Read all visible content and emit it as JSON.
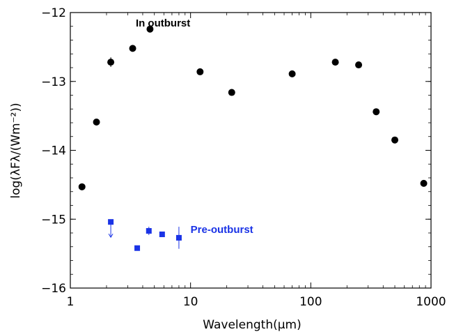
{
  "chart_data": {
    "type": "scatter",
    "title": "",
    "xlabel": "Wavelength(μm)",
    "ylabel": "log(λFλ/(Wm⁻²))",
    "xscale": "log",
    "xlim": [
      1,
      1000
    ],
    "ylim": [
      -16,
      -12
    ],
    "xticks": [
      {
        "value": 1,
        "label": "1"
      },
      {
        "value": 10,
        "label": "10"
      },
      {
        "value": 100,
        "label": "100"
      },
      {
        "value": 1000,
        "label": "1000"
      }
    ],
    "yticks": [
      {
        "value": -12,
        "label": "−12"
      },
      {
        "value": -13,
        "label": "−13"
      },
      {
        "value": -14,
        "label": "−14"
      },
      {
        "value": -15,
        "label": "−15"
      },
      {
        "value": -16,
        "label": "−16"
      }
    ],
    "grid": false,
    "annotations": [
      {
        "text": "In outburst",
        "x": 3.5,
        "y": -12.2,
        "color": "#000000"
      },
      {
        "text": "Pre-outburst",
        "x": 10.0,
        "y": -15.2,
        "color": "#1a33e6"
      }
    ],
    "series": [
      {
        "marker": "circle",
        "color": "#000000",
        "points": [
          {
            "x": 1.25,
            "y": -14.53
          },
          {
            "x": 1.65,
            "y": -13.59
          },
          {
            "x": 2.17,
            "y": -12.72,
            "err": 0.07
          },
          {
            "x": 3.3,
            "y": -12.52
          },
          {
            "x": 4.6,
            "y": -12.24
          },
          {
            "x": 12,
            "y": -12.86
          },
          {
            "x": 22,
            "y": -13.16
          },
          {
            "x": 70,
            "y": -12.89
          },
          {
            "x": 160,
            "y": -12.72
          },
          {
            "x": 250,
            "y": -12.76
          },
          {
            "x": 350,
            "y": -13.44
          },
          {
            "x": 500,
            "y": -13.85
          },
          {
            "x": 870,
            "y": -14.48
          }
        ]
      },
      {
        "marker": "square",
        "color": "#1a33e6",
        "points": [
          {
            "x": 2.17,
            "y": -15.04,
            "upper_limit": true
          },
          {
            "x": 3.6,
            "y": -15.42
          },
          {
            "x": 4.5,
            "y": -15.17,
            "err": 0.06
          },
          {
            "x": 5.8,
            "y": -15.22
          },
          {
            "x": 8.0,
            "y": -15.27,
            "err": 0.16
          }
        ]
      }
    ]
  }
}
